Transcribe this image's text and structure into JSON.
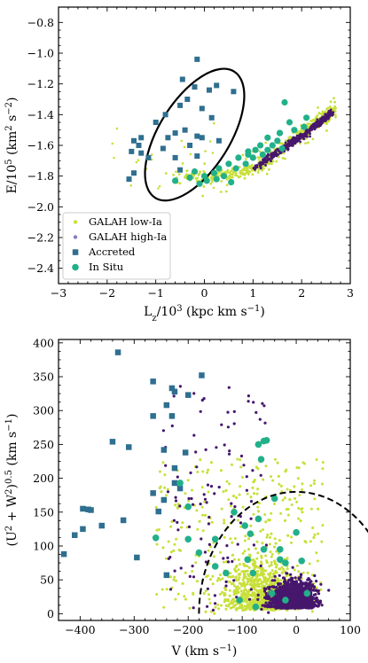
{
  "colors": {
    "low_ia": "#c8e03a",
    "high_ia": "#46176d",
    "high_ia_legend": "#8a7ac0",
    "accreted": "#2f6f8f",
    "in_situ": "#22b08a"
  },
  "chart_data": [
    {
      "type": "scatter",
      "xlabel": "L_z/10^3 (kpc km s^-1)",
      "ylabel": "E/10^5 (km^2 s^-2)",
      "xlim": [
        -3,
        3
      ],
      "ylim": [
        -2.5,
        -0.7
      ],
      "xticks": [
        -3,
        -2,
        -1,
        0,
        1,
        2,
        3
      ],
      "yticks": [
        -2.4,
        -2.2,
        -2.0,
        -1.8,
        -1.6,
        -1.4,
        -1.2,
        -1.0,
        -0.8
      ],
      "legend": {
        "placement": "lower-left",
        "entries": [
          "GALAH low-Ia",
          "GALAH high-Ia",
          "Accreted",
          "In Situ"
        ]
      },
      "ellipse": {
        "center": [
          -0.2,
          -1.53
        ],
        "note": "solid black ellipse enclosing accreted group"
      },
      "series": [
        {
          "name": "GALAH low-Ia",
          "marker": "small-dot",
          "density_trend": [
            [
              -0.9,
              -1.8
            ],
            [
              0.0,
              -1.81
            ],
            [
              0.8,
              -1.78
            ],
            [
              1.2,
              -1.72
            ],
            [
              1.6,
              -1.62
            ],
            [
              2.0,
              -1.52
            ],
            [
              2.4,
              -1.43
            ],
            [
              2.7,
              -1.37
            ]
          ]
        },
        {
          "name": "GALAH high-Ia",
          "marker": "small-dot",
          "density_trend": [
            [
              1.0,
              -1.76
            ],
            [
              1.4,
              -1.66
            ],
            [
              1.8,
              -1.58
            ],
            [
              2.1,
              -1.52
            ],
            [
              2.4,
              -1.44
            ],
            [
              2.6,
              -1.39
            ]
          ]
        },
        {
          "name": "Accreted",
          "marker": "square",
          "points": [
            [
              -0.15,
              -1.04
            ],
            [
              -0.45,
              -1.17
            ],
            [
              0.1,
              -1.24
            ],
            [
              -0.2,
              -1.22
            ],
            [
              0.25,
              -1.21
            ],
            [
              0.6,
              -1.25
            ],
            [
              -0.35,
              -1.3
            ],
            [
              -0.5,
              -1.34
            ],
            [
              -0.8,
              -1.4
            ],
            [
              -0.05,
              -1.36
            ],
            [
              -1.0,
              -1.45
            ],
            [
              0.15,
              -1.42
            ],
            [
              -0.6,
              -1.52
            ],
            [
              -0.4,
              -1.5
            ],
            [
              -0.15,
              -1.54
            ],
            [
              -0.05,
              -1.55
            ],
            [
              -1.3,
              -1.55
            ],
            [
              -1.45,
              -1.57
            ],
            [
              -1.35,
              -1.6
            ],
            [
              -0.75,
              -1.55
            ],
            [
              -0.3,
              -1.6
            ],
            [
              0.3,
              -1.57
            ],
            [
              -1.5,
              -1.64
            ],
            [
              -1.3,
              -1.65
            ],
            [
              -0.85,
              -1.62
            ],
            [
              -0.6,
              -1.68
            ],
            [
              -0.15,
              -1.67
            ],
            [
              -1.15,
              -1.68
            ],
            [
              -0.5,
              -1.76
            ],
            [
              -1.45,
              -1.78
            ],
            [
              -1.55,
              -1.82
            ]
          ]
        },
        {
          "name": "In Situ",
          "marker": "circle",
          "points": [
            [
              1.65,
              -1.32
            ],
            [
              2.1,
              -1.42
            ],
            [
              1.75,
              -1.45
            ],
            [
              2.05,
              -1.48
            ],
            [
              1.55,
              -1.52
            ],
            [
              1.85,
              -1.5
            ],
            [
              1.3,
              -1.55
            ],
            [
              1.5,
              -1.57
            ],
            [
              1.15,
              -1.6
            ],
            [
              1.4,
              -1.6
            ],
            [
              1.05,
              -1.63
            ],
            [
              1.3,
              -1.63
            ],
            [
              1.6,
              -1.62
            ],
            [
              0.9,
              -1.64
            ],
            [
              1.2,
              -1.66
            ],
            [
              0.7,
              -1.68
            ],
            [
              1.0,
              -1.68
            ],
            [
              0.5,
              -1.72
            ],
            [
              0.85,
              -1.72
            ],
            [
              0.3,
              -1.75
            ],
            [
              0.65,
              -1.75
            ],
            [
              0.2,
              -1.78
            ],
            [
              -0.2,
              -1.77
            ],
            [
              0.4,
              -1.8
            ],
            [
              0.0,
              -1.8
            ],
            [
              -0.3,
              -1.81
            ],
            [
              0.25,
              -1.82
            ],
            [
              -0.6,
              -1.83
            ],
            [
              0.05,
              -1.83
            ],
            [
              -0.1,
              -1.85
            ],
            [
              0.55,
              -1.84
            ],
            [
              1.55,
              -1.52
            ],
            [
              0.9,
              -1.66
            ]
          ]
        }
      ]
    },
    {
      "type": "scatter",
      "xlabel": "V (km s^-1)",
      "ylabel": "(U^2 + W^2)^0.5 (km s^-1)",
      "xlim": [
        -440,
        100
      ],
      "ylim": [
        -10,
        405
      ],
      "xticks": [
        -400,
        -300,
        -200,
        -100,
        0,
        100
      ],
      "yticks": [
        0,
        50,
        100,
        150,
        200,
        250,
        300,
        350,
        400
      ],
      "dashed_circle": {
        "center_v": 0,
        "radius": 180,
        "style": "dashed"
      },
      "series": [
        {
          "name": "GALAH low-Ia",
          "marker": "small-dot",
          "extent_note": "dense cloud, V ~ -260 to 60, value ~ 0 to 250"
        },
        {
          "name": "GALAH high-Ia",
          "marker": "small-dot",
          "extent_note": "dense core, V ~ -120 to 60, value ~ 0 to 120"
        },
        {
          "name": "Accreted",
          "marker": "square",
          "points": [
            [
              -330,
              386
            ],
            [
              -265,
              343
            ],
            [
              -240,
              308
            ],
            [
              -230,
              333
            ],
            [
              -225,
              328
            ],
            [
              -200,
              323
            ],
            [
              -175,
              352
            ],
            [
              -265,
              292
            ],
            [
              -230,
              292
            ],
            [
              -340,
              254
            ],
            [
              -310,
              246
            ],
            [
              -245,
              242
            ],
            [
              -205,
              238
            ],
            [
              -225,
              215
            ],
            [
              -225,
              193
            ],
            [
              -215,
              185
            ],
            [
              -265,
              178
            ],
            [
              -245,
              168
            ],
            [
              -255,
              151
            ],
            [
              -320,
              138
            ],
            [
              -385,
              154
            ],
            [
              -395,
              155
            ],
            [
              -380,
              153
            ],
            [
              -360,
              130
            ],
            [
              -395,
              125
            ],
            [
              -410,
              116
            ],
            [
              -430,
              88
            ],
            [
              -295,
              83
            ],
            [
              -240,
              57
            ]
          ]
        },
        {
          "name": "In Situ",
          "marker": "circle",
          "points": [
            [
              -215,
              193
            ],
            [
              -200,
              158
            ],
            [
              -260,
              112
            ],
            [
              -60,
              255
            ],
            [
              -55,
              256
            ],
            [
              -70,
              250
            ],
            [
              -65,
              228
            ],
            [
              -115,
              150
            ],
            [
              -95,
              130
            ],
            [
              -85,
              118
            ],
            [
              -60,
              95
            ],
            [
              -40,
              170
            ],
            [
              -150,
              110
            ],
            [
              -180,
              90
            ],
            [
              -130,
              60
            ],
            [
              -90,
              80
            ],
            [
              -70,
              140
            ],
            [
              -80,
              60
            ],
            [
              -30,
              80
            ],
            [
              10,
              78
            ],
            [
              -20,
              75
            ],
            [
              -45,
              30
            ],
            [
              -20,
              20
            ],
            [
              20,
              30
            ],
            [
              -105,
              20
            ],
            [
              -75,
              10
            ],
            [
              -30,
              95
            ],
            [
              -150,
              70
            ],
            [
              0,
              120
            ],
            [
              -200,
              110
            ]
          ]
        }
      ]
    }
  ]
}
